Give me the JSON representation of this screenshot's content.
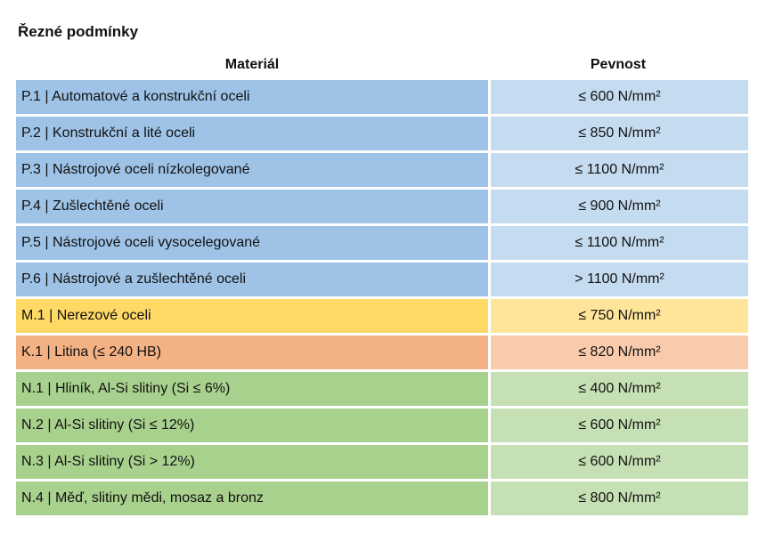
{
  "title": "Řezné podmínky",
  "headers": {
    "material": "Materiál",
    "strength": "Pevnost"
  },
  "rows": [
    {
      "material": "P.1 | Automatové a konstrukční oceli",
      "strength": "≤ 600 N/mm²",
      "mat_color": "#9ec3e6",
      "str_color": "#c5dbf0"
    },
    {
      "material": "P.2 | Konstrukční a lité oceli",
      "strength": "≤ 850 N/mm²",
      "mat_color": "#9ec3e6",
      "str_color": "#c5dbf0"
    },
    {
      "material": "P.3 | Nástrojové oceli nízkolegované",
      "strength": "≤ 1100 N/mm²",
      "mat_color": "#9ec3e6",
      "str_color": "#c5dbf0"
    },
    {
      "material": "P.4 | Zušlechtěné oceli",
      "strength": "≤ 900 N/mm²",
      "mat_color": "#9ec3e6",
      "str_color": "#c5dbf0"
    },
    {
      "material": "P.5 | Nástrojové oceli vysocelegované",
      "strength": "≤ 1100 N/mm²",
      "mat_color": "#9ec3e6",
      "str_color": "#c5dbf0"
    },
    {
      "material": "P.6 | Nástrojové a zušlechtěné oceli",
      "strength": "> 1100 N/mm²",
      "mat_color": "#9ec3e6",
      "str_color": "#c5dbf0"
    },
    {
      "material": "M.1 | Nerezové oceli",
      "strength": "≤ 750 N/mm²",
      "mat_color": "#ffd966",
      "str_color": "#ffe59a"
    },
    {
      "material": "K.1 | Litina (≤ 240 HB)",
      "strength": "≤ 820 N/mm²",
      "mat_color": "#f4b183",
      "str_color": "#f8cbad"
    },
    {
      "material": "N.1 | Hliník, Al-Si slitiny (Si ≤ 6%)",
      "strength": "≤ 400 N/mm²",
      "mat_color": "#a9d18e",
      "str_color": "#c5e0b4"
    },
    {
      "material": "N.2 | Al-Si slitiny (Si ≤ 12%)",
      "strength": "≤ 600 N/mm²",
      "mat_color": "#a9d18e",
      "str_color": "#c5e0b4"
    },
    {
      "material": "N.3 | Al-Si slitiny (Si > 12%)",
      "strength": "≤ 600 N/mm²",
      "mat_color": "#a9d18e",
      "str_color": "#c5e0b4"
    },
    {
      "material": "N.4 | Měď, slitiny mědi, mosaz a bronz",
      "strength": "≤ 800 N/mm²",
      "mat_color": "#a9d18e",
      "str_color": "#c5e0b4"
    }
  ]
}
